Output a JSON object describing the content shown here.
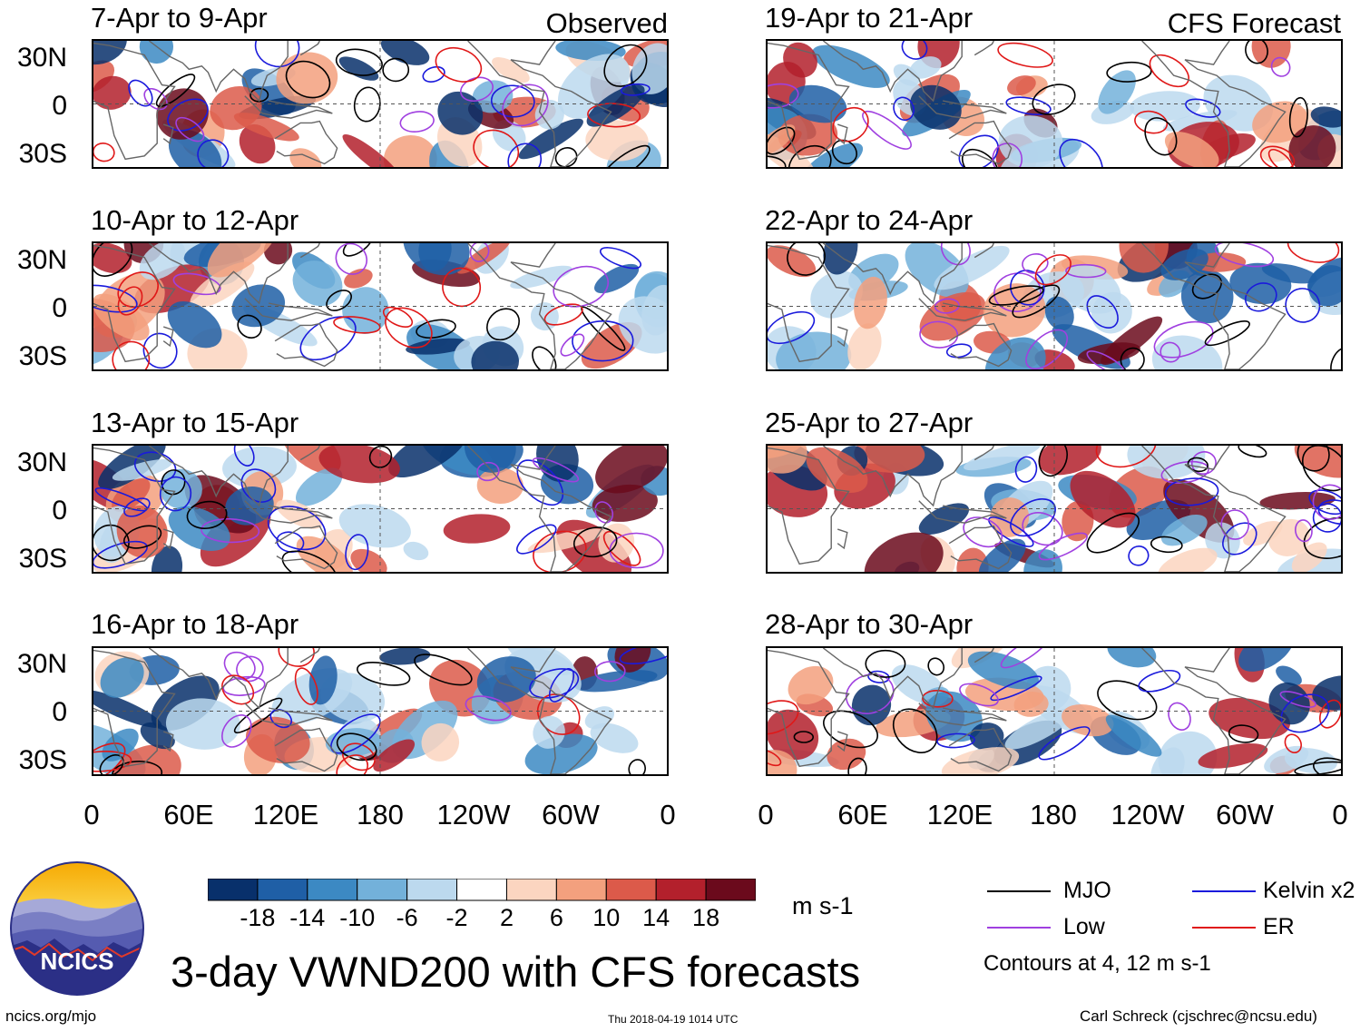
{
  "header": {
    "left_tag": "Observed",
    "right_tag": "CFS Forecast"
  },
  "panels_left": [
    {
      "title": "7-Apr to 9-Apr"
    },
    {
      "title": "10-Apr to 12-Apr"
    },
    {
      "title": "13-Apr to 15-Apr"
    },
    {
      "title": "16-Apr to 18-Apr"
    }
  ],
  "panels_right": [
    {
      "title": "19-Apr to 21-Apr"
    },
    {
      "title": "22-Apr to 24-Apr"
    },
    {
      "title": "25-Apr to 27-Apr"
    },
    {
      "title": "28-Apr to 30-Apr"
    }
  ],
  "axes": {
    "lat_ticks": [
      "30N",
      "0",
      "30S"
    ],
    "lon_ticks": [
      "0",
      "60E",
      "120E",
      "180",
      "120W",
      "60W",
      "0"
    ]
  },
  "colorbar": {
    "tick_labels": [
      "-18",
      "-14",
      "-10",
      "-6",
      "-2",
      "2",
      "6",
      "10",
      "14",
      "18"
    ],
    "colors": [
      "#08306b",
      "#1f5fa6",
      "#3c89c3",
      "#73b1da",
      "#bcd9ee",
      "#ffffff",
      "#fbd5c0",
      "#f3a07e",
      "#dc5a4a",
      "#b3202c",
      "#6b0a1c"
    ],
    "units": "m s-1"
  },
  "chart_data": {
    "type": "heatmap",
    "title": "3-day VWND200 with CFS forecasts",
    "variable": "VWND200",
    "units": "m s-1",
    "levels": [
      -18,
      -14,
      -10,
      -6,
      -2,
      2,
      6,
      10,
      14,
      18
    ],
    "lat_range": [
      "40S",
      "40N"
    ],
    "lon_range": [
      "0",
      "0"
    ],
    "panels": [
      "7-Apr to 9-Apr",
      "10-Apr to 12-Apr",
      "13-Apr to 15-Apr",
      "16-Apr to 18-Apr",
      "19-Apr to 21-Apr",
      "22-Apr to 24-Apr",
      "25-Apr to 27-Apr",
      "28-Apr to 30-Apr"
    ],
    "contour_levels": [
      4,
      12
    ],
    "contour_series": [
      "MJO",
      "Kelvin x2",
      "Low",
      "ER"
    ]
  },
  "legend": {
    "items": [
      {
        "label": "MJO",
        "color": "#000000"
      },
      {
        "label": "Kelvin x2",
        "color": "#1a1adc"
      },
      {
        "label": "Low",
        "color": "#a040e0"
      },
      {
        "label": "ER",
        "color": "#e01818"
      }
    ],
    "note": "Contours at 4, 12 m s-1"
  },
  "footer": {
    "logo_text": "NCICS",
    "main_title": "3-day VWND200 with CFS forecasts",
    "url": "ncics.org/mjo",
    "timestamp": "Thu 2018-04-19 1014 UTC",
    "credit": "Carl Schreck (cjschrec@ncsu.edu)"
  }
}
